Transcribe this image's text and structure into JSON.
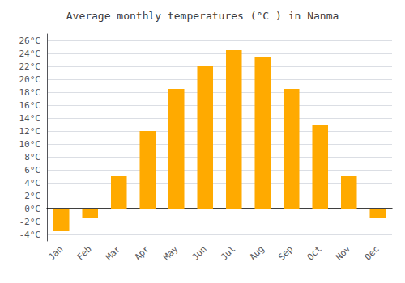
{
  "chart_data": {
    "type": "bar",
    "title": "Average monthly temperatures (°C ) in Nanma",
    "categories": [
      "Jan",
      "Feb",
      "Mar",
      "Apr",
      "May",
      "Jun",
      "Jul",
      "Aug",
      "Sep",
      "Oct",
      "Nov",
      "Dec"
    ],
    "values": [
      -3.5,
      -1.5,
      5.0,
      12.0,
      18.5,
      22.0,
      24.5,
      23.5,
      18.5,
      13.0,
      5.0,
      -1.5
    ],
    "color": "#FFAA00",
    "ylim": [
      -5,
      27
    ],
    "yticks": [
      {
        "value": -4,
        "label": "-4°C"
      },
      {
        "value": -2,
        "label": "-2°C"
      },
      {
        "value": 0,
        "label": "0°C"
      },
      {
        "value": 2,
        "label": "2°C"
      },
      {
        "value": 4,
        "label": "4°C"
      },
      {
        "value": 6,
        "label": "6°C"
      },
      {
        "value": 8,
        "label": "8°C"
      },
      {
        "value": 10,
        "label": "10°C"
      },
      {
        "value": 12,
        "label": "12°C"
      },
      {
        "value": 14,
        "label": "14°C"
      },
      {
        "value": 16,
        "label": "16°C"
      },
      {
        "value": 18,
        "label": "18°C"
      },
      {
        "value": 20,
        "label": "20°C"
      },
      {
        "value": 22,
        "label": "22°C"
      },
      {
        "value": 24,
        "label": "24°C"
      },
      {
        "value": 26,
        "label": "26°C"
      }
    ],
    "grid": true
  }
}
